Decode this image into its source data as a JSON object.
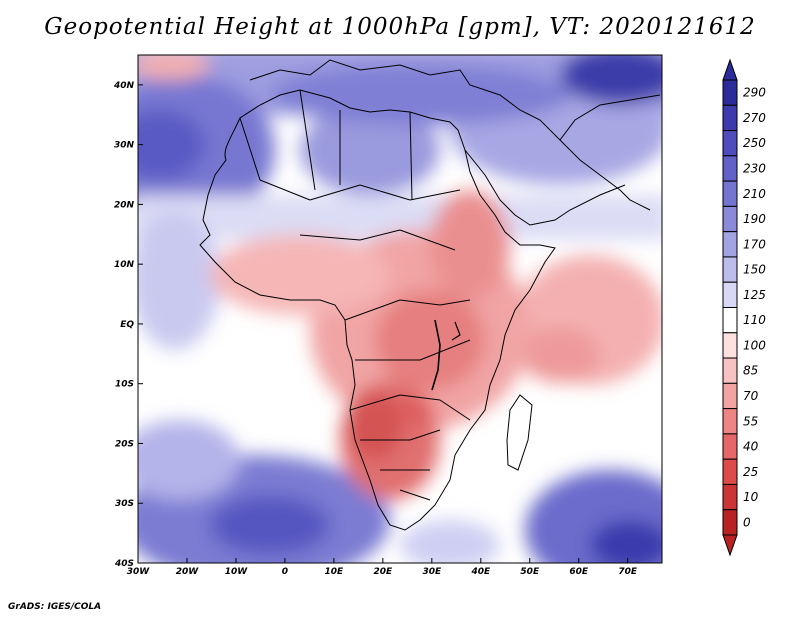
{
  "title": "Geopotential Height at 1000hPa [gpm], VT: 2020121612",
  "credit": "GrADS: IGES/COLA",
  "map": {
    "lon_range": [
      -30,
      77
    ],
    "lat_range": [
      -40,
      45
    ],
    "x_ticks": [
      {
        "lon": -30,
        "label": "30W"
      },
      {
        "lon": -20,
        "label": "20W"
      },
      {
        "lon": -10,
        "label": "10W"
      },
      {
        "lon": 0,
        "label": "0"
      },
      {
        "lon": 10,
        "label": "10E"
      },
      {
        "lon": 20,
        "label": "20E"
      },
      {
        "lon": 30,
        "label": "30E"
      },
      {
        "lon": 40,
        "label": "40E"
      },
      {
        "lon": 50,
        "label": "50E"
      },
      {
        "lon": 60,
        "label": "60E"
      },
      {
        "lon": 70,
        "label": "70E"
      }
    ],
    "y_ticks": [
      {
        "lat": 40,
        "label": "40N"
      },
      {
        "lat": 30,
        "label": "30N"
      },
      {
        "lat": 20,
        "label": "20N"
      },
      {
        "lat": 10,
        "label": "10N"
      },
      {
        "lat": 0,
        "label": "EQ"
      },
      {
        "lat": -10,
        "label": "10S"
      },
      {
        "lat": -20,
        "label": "20S"
      },
      {
        "lat": -30,
        "label": "30S"
      },
      {
        "lat": -40,
        "label": "40S"
      }
    ]
  },
  "colorbar": {
    "labels": [
      "290",
      "270",
      "250",
      "230",
      "210",
      "190",
      "170",
      "150",
      "125",
      "110",
      "100",
      "85",
      "70",
      "55",
      "40",
      "25",
      "10",
      "0"
    ],
    "colors": [
      "#2b2b99",
      "#3b3bad",
      "#4d4dbd",
      "#6161c8",
      "#7474d1",
      "#8a8ad9",
      "#a3a3e2",
      "#bdbdec",
      "#d8d8f5",
      "#ffffff",
      "#fde0e0",
      "#f9c2c2",
      "#f4a3a3",
      "#ee8585",
      "#e66767",
      "#dc4a4a",
      "#cc3535",
      "#b82222"
    ]
  }
}
